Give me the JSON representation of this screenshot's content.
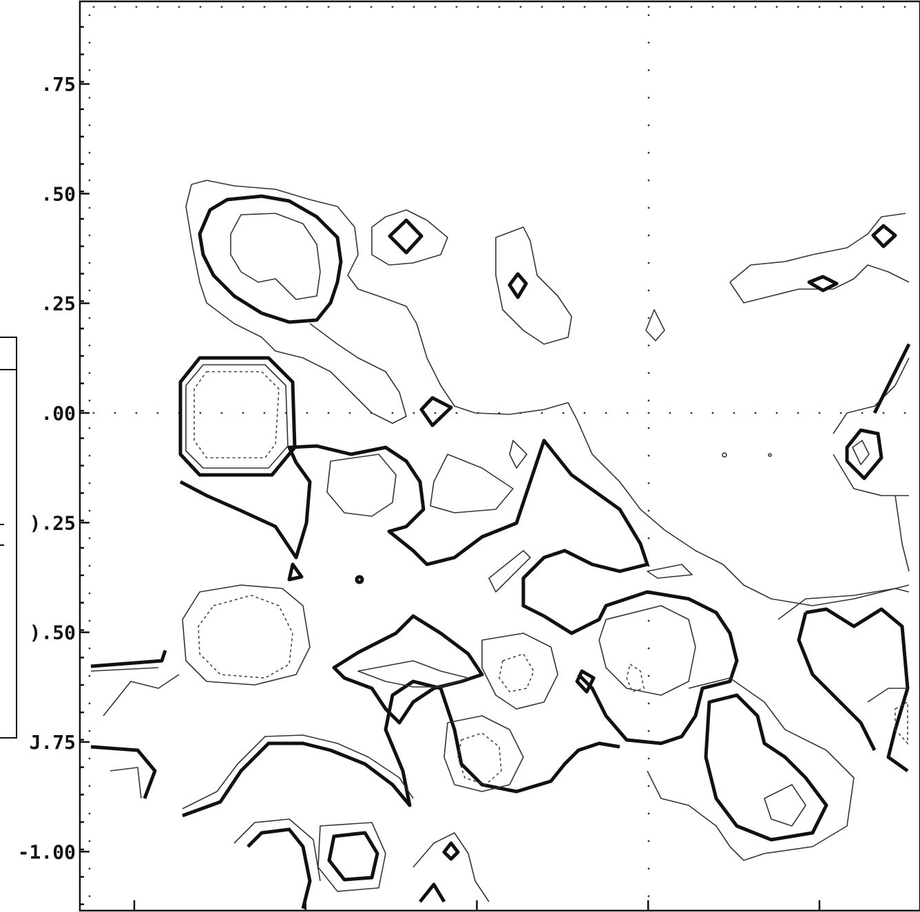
{
  "chart_data": {
    "type": "contour",
    "title": "",
    "xlabel": "",
    "ylabel": "",
    "y_ticks": [
      {
        "value": 0.75,
        "label": ".75"
      },
      {
        "value": 0.5,
        "label": ".50"
      },
      {
        "value": 0.25,
        "label": ".25"
      },
      {
        "value": 0.0,
        "label": ".00"
      },
      {
        "value": -0.25,
        "label": ").25"
      },
      {
        "value": -0.5,
        "label": ").50"
      },
      {
        "value": -0.75,
        "label": "J.75"
      },
      {
        "value": -1.0,
        "label": "-1.00"
      }
    ],
    "ylim": [
      -1.12,
      0.93
    ],
    "x_tick_count_major": 4,
    "grid": "dotted",
    "contour_levels": [
      "thick solid",
      "thin solid",
      "dashed"
    ],
    "colors": {
      "ink": "#111111",
      "background": "#ffffff"
    }
  }
}
